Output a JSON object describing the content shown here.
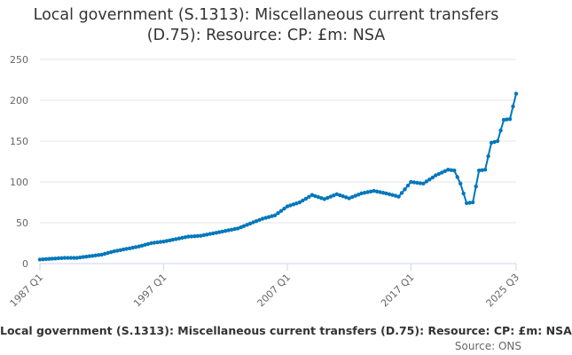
{
  "title": {
    "line1": "Local government (S.1313): Miscellaneous current transfers",
    "line2": "(D.75): Resource: CP: £m: NSA"
  },
  "legend": {
    "label": "Local government (S.1313): Miscellaneous current transfers (D.75): Resource: CP: £m: NSA"
  },
  "credits": "Source: ONS",
  "colors": {
    "series": "#0077bb",
    "grid": "#e6e6e6",
    "axis": "#ccd6eb"
  },
  "chart_data": {
    "type": "line",
    "title": "Local government (S.1313): Miscellaneous current transfers (D.75): Resource: CP: £m: NSA",
    "xlabel": "",
    "ylabel": "",
    "ylim": [
      0,
      250
    ],
    "yticks": [
      0,
      50,
      100,
      150,
      200,
      250
    ],
    "xticks": [
      "1987 Q1",
      "1997 Q1",
      "2007 Q1",
      "2017 Q1",
      "2025 Q3"
    ],
    "grid": true,
    "legend": "bottom",
    "series": [
      {
        "name": "Local government (S.1313): Miscellaneous current transfers (D.75): Resource: CP: £m: NSA",
        "x": [
          "1987 Q1",
          "1988 Q1",
          "1989 Q1",
          "1990 Q1",
          "1991 Q1",
          "1992 Q1",
          "1993 Q1",
          "1994 Q1",
          "1995 Q1",
          "1996 Q1",
          "1997 Q1",
          "1998 Q1",
          "1999 Q1",
          "2000 Q1",
          "2001 Q1",
          "2002 Q1",
          "2003 Q1",
          "2004 Q1",
          "2005 Q1",
          "2006 Q1",
          "2007 Q1",
          "2008 Q1",
          "2009 Q1",
          "2010 Q1",
          "2011 Q1",
          "2012 Q1",
          "2013 Q1",
          "2014 Q1",
          "2015 Q1",
          "2016 Q1",
          "2017 Q1",
          "2018 Q1",
          "2019 Q1",
          "2020 Q1",
          "2020 Q3",
          "2021 Q1",
          "2021 Q3",
          "2022 Q1",
          "2022 Q3",
          "2023 Q1",
          "2023 Q3",
          "2024 Q1",
          "2024 Q3",
          "2025 Q1",
          "2025 Q3"
        ],
        "values": [
          5,
          6,
          7,
          7,
          9,
          11,
          15,
          18,
          21,
          25,
          27,
          30,
          33,
          34,
          37,
          40,
          43,
          49,
          55,
          59,
          70,
          75,
          84,
          79,
          85,
          80,
          86,
          89,
          86,
          82,
          100,
          98,
          108,
          115,
          114,
          98,
          74,
          75,
          114,
          115,
          148,
          150,
          176,
          177,
          208
        ]
      }
    ]
  }
}
